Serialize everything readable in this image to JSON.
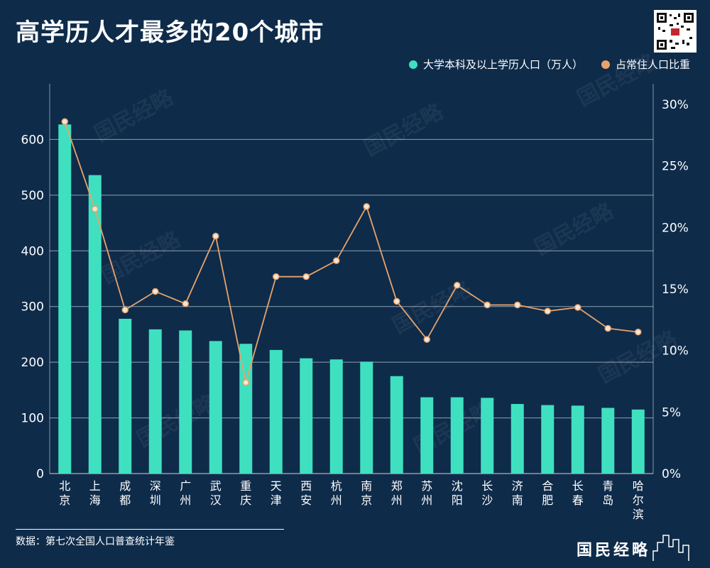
{
  "title": "高学历人才最多的20个城市",
  "source": "数据：第七次全国人口普查统计年鉴",
  "brand": "国民经略",
  "qr_icon": "qr-code-icon",
  "colors": {
    "background": "#0e2b4a",
    "bar": "#3fe0c0",
    "line": "#e8a36a",
    "grid": "#ffffff"
  },
  "chart_data": {
    "type": "bar",
    "categories": [
      "北京",
      "上海",
      "成都",
      "深圳",
      "广州",
      "武汉",
      "重庆",
      "天津",
      "西安",
      "杭州",
      "南京",
      "郑州",
      "苏州",
      "沈阳",
      "长沙",
      "济南",
      "合肥",
      "长春",
      "青岛",
      "哈尔滨"
    ],
    "series": [
      {
        "name": "大学本科及以上学历人口（万人）",
        "type": "bar",
        "axis": "left",
        "values": [
          627,
          536,
          278,
          259,
          257,
          238,
          233,
          222,
          207,
          205,
          201,
          175,
          137,
          137,
          136,
          125,
          123,
          122,
          118,
          115
        ]
      },
      {
        "name": "占常住人口比重",
        "type": "line",
        "axis": "right",
        "values": [
          28.6,
          21.5,
          13.3,
          14.8,
          13.8,
          19.3,
          7.4,
          16.0,
          16.0,
          17.3,
          21.7,
          14.0,
          10.9,
          15.3,
          13.7,
          13.7,
          13.2,
          13.5,
          11.8,
          11.5
        ]
      }
    ],
    "left_axis": {
      "ylim": [
        0,
        700
      ],
      "ticks": [
        "0",
        "100",
        "200",
        "300",
        "400",
        "500",
        "600"
      ]
    },
    "right_axis": {
      "ylim": [
        0,
        30
      ],
      "ticks": [
        "0%",
        "5%",
        "10%",
        "15%",
        "20%",
        "25%",
        "30%"
      ]
    },
    "grid": true,
    "legend_position": "top-right",
    "watermark": "国民经略"
  }
}
